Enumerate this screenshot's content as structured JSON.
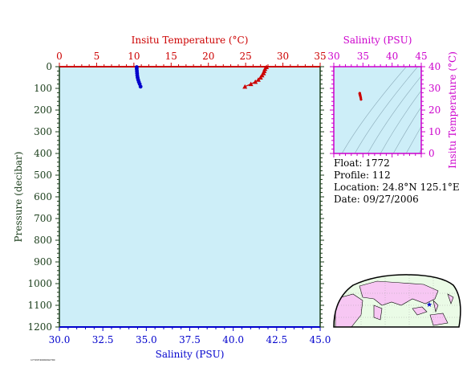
{
  "colors": {
    "plot_bg": "#cdeef8",
    "temperature": "#cc0000",
    "salinity": "#0000cc",
    "axis_dark": "#1a3d1a",
    "ts_axis": "#cc00cc",
    "land": "#f7c7f3",
    "map_ocean": "#eafbe6"
  },
  "info": {
    "float": "Float:  1772",
    "profile": "Profile:  112",
    "location": "Location:  24.8°N  125.1°E",
    "date": "Date:  09/27/2006"
  },
  "footer_tiny": "1772072006092700",
  "chart_data": [
    {
      "type": "scatter",
      "title": "",
      "top_axis": {
        "label": "Insitu Temperature (°C)",
        "range": [
          0,
          35
        ],
        "ticks": [
          "0",
          "5",
          "10",
          "15",
          "20",
          "25",
          "30",
          "35"
        ]
      },
      "bottom_axis": {
        "label": "Salinity (PSU)",
        "range": [
          30,
          45
        ],
        "ticks": [
          "30.0",
          "32.5",
          "35.0",
          "37.5",
          "40.0",
          "42.5",
          "45.0"
        ]
      },
      "left_axis": {
        "label": "Pressure (decibar)",
        "range": [
          0,
          1200
        ],
        "inverted": true,
        "ticks": [
          "0",
          "100",
          "200",
          "300",
          "400",
          "500",
          "600",
          "700",
          "800",
          "900",
          "1000",
          "1100",
          "1200"
        ]
      },
      "series": [
        {
          "color": "#cc0000",
          "marker": "triangle",
          "axis": "temperature",
          "x": [
            27.8,
            27.6,
            27.5,
            27.4,
            27.2,
            27.0,
            26.7,
            26.3,
            25.7,
            24.9
          ],
          "y": [
            2,
            10,
            20,
            30,
            40,
            50,
            60,
            70,
            80,
            92
          ]
        },
        {
          "color": "#0000cc",
          "marker": "circle",
          "axis": "salinity",
          "x": [
            34.45,
            34.45,
            34.46,
            34.47,
            34.48,
            34.5,
            34.53,
            34.57,
            34.62,
            34.67
          ],
          "y": [
            2,
            10,
            20,
            30,
            40,
            50,
            60,
            70,
            80,
            92
          ]
        }
      ]
    },
    {
      "type": "scatter",
      "title": "",
      "xlabel": "Salinity (PSU)",
      "ylabel": "Insitu Temperature (°C)",
      "xlim": [
        30,
        45
      ],
      "ylim": [
        0,
        40
      ],
      "x_ticks": [
        "30",
        "35",
        "40",
        "45"
      ],
      "y_ticks": [
        "0",
        "10",
        "20",
        "30",
        "40"
      ],
      "series": [
        {
          "color": "#cc0000",
          "marker": "circle",
          "x": [
            34.45,
            34.45,
            34.46,
            34.47,
            34.48,
            34.5,
            34.53,
            34.57,
            34.62,
            34.67
          ],
          "y": [
            27.8,
            27.6,
            27.5,
            27.4,
            27.2,
            27.0,
            26.7,
            26.3,
            25.7,
            24.9
          ]
        }
      ]
    }
  ]
}
